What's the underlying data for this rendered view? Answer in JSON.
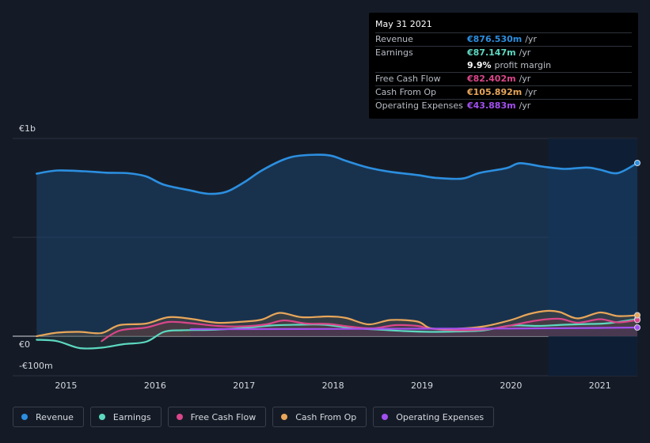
{
  "chart_data": {
    "type": "area",
    "y_tick_labels": [
      "€1b",
      "€0",
      "-€100m"
    ],
    "x_tick_labels": [
      "2015",
      "2016",
      "2017",
      "2018",
      "2019",
      "2020",
      "2021"
    ],
    "ylim": [
      -200,
      1000
    ],
    "grid": true,
    "legend_placement": "bottom-left",
    "series": [
      {
        "name": "Revenue",
        "color": "#2c8fe0",
        "x": [
          2014.67,
          2014.9,
          2015.2,
          2015.45,
          2015.7,
          2015.9,
          2016.1,
          2016.4,
          2016.6,
          2016.8,
          2017.0,
          2017.2,
          2017.45,
          2017.65,
          2017.95,
          2018.15,
          2018.4,
          2018.65,
          2018.95,
          2019.15,
          2019.45,
          2019.65,
          2019.95,
          2020.1,
          2020.35,
          2020.6,
          2020.85,
          2021.0,
          2021.2,
          2021.42
        ],
        "values": [
          822,
          838,
          834,
          827,
          824,
          808,
          766,
          737,
          720,
          730,
          778,
          838,
          894,
          914,
          915,
          886,
          852,
          831,
          815,
          801,
          797,
          826,
          850,
          875,
          858,
          846,
          853,
          842,
          825,
          876
        ]
      },
      {
        "name": "Earnings",
        "color": "#5dd9c1",
        "x": [
          2014.67,
          2014.9,
          2015.15,
          2015.4,
          2015.65,
          2015.9,
          2016.1,
          2016.3,
          2016.6,
          2016.8,
          2017.0,
          2017.3,
          2017.6,
          2017.9,
          2018.2,
          2018.5,
          2018.8,
          2019.1,
          2019.4,
          2019.7,
          2020.0,
          2020.3,
          2020.6,
          2020.9,
          2021.1,
          2021.42
        ],
        "values": [
          -18,
          -25,
          -60,
          -58,
          -40,
          -28,
          22,
          30,
          32,
          36,
          42,
          54,
          58,
          58,
          42,
          34,
          26,
          22,
          24,
          30,
          54,
          52,
          58,
          62,
          66,
          87
        ]
      },
      {
        "name": "Free Cash Flow",
        "color": "#d9468a",
        "x": [
          2015.4,
          2015.6,
          2015.9,
          2016.15,
          2016.4,
          2016.7,
          2017.0,
          2017.25,
          2017.45,
          2017.7,
          2017.95,
          2018.2,
          2018.45,
          2018.7,
          2018.95,
          2019.1,
          2019.4,
          2019.7,
          2020.0,
          2020.3,
          2020.55,
          2020.75,
          2021.0,
          2021.2,
          2021.42
        ],
        "values": [
          -25,
          28,
          44,
          72,
          66,
          52,
          50,
          60,
          80,
          64,
          62,
          48,
          40,
          56,
          52,
          38,
          30,
          34,
          55,
          80,
          88,
          68,
          86,
          70,
          82
        ]
      },
      {
        "name": "Cash From Op",
        "color": "#e8a65a",
        "x": [
          2014.67,
          2014.9,
          2015.15,
          2015.4,
          2015.6,
          2015.9,
          2016.15,
          2016.4,
          2016.7,
          2017.0,
          2017.2,
          2017.4,
          2017.65,
          2017.95,
          2018.15,
          2018.4,
          2018.65,
          2018.95,
          2019.1,
          2019.4,
          2019.7,
          2020.0,
          2020.2,
          2020.4,
          2020.55,
          2020.75,
          2021.0,
          2021.2,
          2021.42
        ],
        "values": [
          0,
          18,
          22,
          16,
          56,
          64,
          96,
          88,
          68,
          74,
          84,
          118,
          96,
          100,
          92,
          60,
          82,
          74,
          40,
          38,
          50,
          82,
          112,
          128,
          122,
          90,
          120,
          102,
          106
        ]
      },
      {
        "name": "Operating Expenses",
        "color": "#a24ff0",
        "x": [
          2016.4,
          2017.0,
          2018.0,
          2019.0,
          2020.0,
          2021.0,
          2021.42
        ],
        "values": [
          36,
          36,
          37,
          38,
          39,
          42,
          44
        ]
      }
    ]
  },
  "forecast_shade_start_x": 2020.42,
  "tooltip": {
    "date": "May 31 2021",
    "rows": [
      {
        "label": "Revenue",
        "value": "€876.530m",
        "unit": "/yr",
        "color": "#2c8fe0"
      },
      {
        "label": "Earnings",
        "value": "€87.147m",
        "unit": "/yr",
        "color": "#5dd9c1"
      },
      {
        "label": "",
        "value": "9.9%",
        "unit": "profit margin",
        "color": "#ffffff"
      },
      {
        "label": "Free Cash Flow",
        "value": "€82.402m",
        "unit": "/yr",
        "color": "#d9468a"
      },
      {
        "label": "Cash From Op",
        "value": "€105.892m",
        "unit": "/yr",
        "color": "#e8a65a"
      },
      {
        "label": "Operating Expenses",
        "value": "€43.883m",
        "unit": "/yr",
        "color": "#a24ff0"
      }
    ]
  },
  "legend": {
    "items": [
      {
        "label": "Revenue",
        "color": "#2c8fe0"
      },
      {
        "label": "Earnings",
        "color": "#5dd9c1"
      },
      {
        "label": "Free Cash Flow",
        "color": "#d9468a"
      },
      {
        "label": "Cash From Op",
        "color": "#e8a65a"
      },
      {
        "label": "Operating Expenses",
        "color": "#a24ff0"
      }
    ]
  }
}
